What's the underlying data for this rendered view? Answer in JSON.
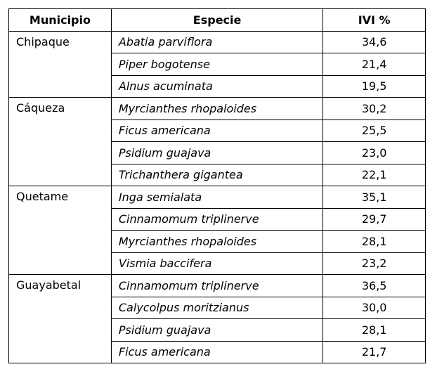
{
  "table": {
    "header": [
      "Municipio",
      "Especie",
      "IVI %"
    ],
    "groups": [
      {
        "municipio": "Chipaque",
        "rows": [
          {
            "especie": "Abatia parviflora",
            "ivi": "34,6"
          },
          {
            "especie": "Piper bogotense",
            "ivi": "21,4"
          },
          {
            "especie": "Alnus acuminata",
            "ivi": "19,5"
          }
        ]
      },
      {
        "municipio": "Cáqueza",
        "rows": [
          {
            "especie": "Myrcianthes rhopaloides",
            "ivi": "30,2"
          },
          {
            "especie": "Ficus americana",
            "ivi": "25,5"
          },
          {
            "especie": "Psidium guajava",
            "ivi": "23,0"
          },
          {
            "especie": "Trichanthera gigantea",
            "ivi": "22,1"
          }
        ]
      },
      {
        "municipio": "Quetame",
        "rows": [
          {
            "especie": "Inga semialata",
            "ivi": "35,1"
          },
          {
            "especie": "Cinnamomum triplinerve",
            "ivi": "29,7"
          },
          {
            "especie": "Myrcianthes rhopaloides",
            "ivi": "28,1"
          },
          {
            "especie": "Vismia baccifera",
            "ivi": "23,2"
          }
        ]
      },
      {
        "municipio": "Guayabetal",
        "rows": [
          {
            "especie": "Cinnamomum triplinerve",
            "ivi": "36,5"
          },
          {
            "especie": "Calycolpus moritzianus",
            "ivi": "30,0"
          },
          {
            "especie": "Psidium guajava",
            "ivi": "28,1"
          },
          {
            "especie": "Ficus americana",
            "ivi": "21,7"
          }
        ]
      }
    ]
  }
}
